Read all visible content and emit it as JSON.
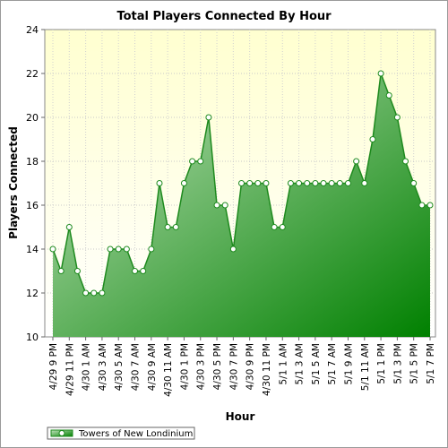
{
  "chart_data": {
    "type": "area",
    "title": "Total Players Connected By Hour",
    "xlabel": "Hour",
    "ylabel": "Players Connected",
    "ylim": [
      10,
      24
    ],
    "yticks": [
      10,
      12,
      14,
      16,
      18,
      20,
      22,
      24
    ],
    "grid": true,
    "legend_position": "bottom-left",
    "colors": {
      "line": "#1e8a1e",
      "fill_light": "#c2e3bd",
      "fill_dark": "#008000",
      "plot_bg_top": "#ffffd0",
      "plot_bg_bottom": "#ffffff",
      "marker_fill": "#ffffff"
    },
    "x_tick_labels": [
      "4/29 9 PM",
      "4/29 11 PM",
      "4/30 1 AM",
      "4/30 3 AM",
      "4/30 5 AM",
      "4/30 7 AM",
      "4/30 9 AM",
      "4/30 11 AM",
      "4/30 1 PM",
      "4/30 3 PM",
      "4/30 5 PM",
      "4/30 7 PM",
      "4/30 9 PM",
      "4/30 11 PM",
      "5/1 1 AM",
      "5/1 3 AM",
      "5/1 5 AM",
      "5/1 7 AM",
      "5/1 9 AM",
      "5/1 11 AM",
      "5/1 1 PM",
      "5/1 3 PM",
      "5/1 5 PM",
      "5/1 7 PM"
    ],
    "series": [
      {
        "name": "Towers of New Londinium",
        "values": [
          14,
          13,
          15,
          13,
          12,
          12,
          12,
          14,
          14,
          14,
          13,
          13,
          14,
          17,
          15,
          15,
          17,
          18,
          18,
          20,
          16,
          16,
          14,
          17,
          17,
          17,
          17,
          15,
          15,
          17,
          17,
          17,
          17,
          17,
          17,
          17,
          17,
          18,
          17,
          19,
          22,
          21,
          20,
          18,
          17,
          16,
          16
        ]
      }
    ]
  }
}
